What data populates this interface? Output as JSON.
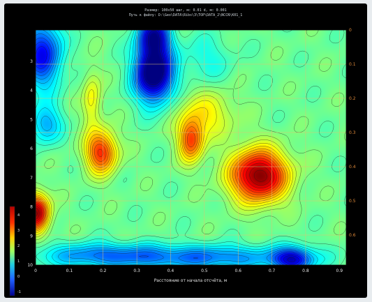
{
  "header": {
    "line1": "Размер: 100x50  шаг, м: 0.01  d, м: 0.001",
    "line2": "Путь к файлу: D:\\Geo\\DATA\\Ribs\\3\\TOP\\DATA_2\\NCCN\\K01_1"
  },
  "chart_data": {
    "type": "heatmap",
    "title": "",
    "xlabel": "Расстояние от начала отсчёта, м",
    "ylabel": "",
    "x_ticks": [
      "0",
      "0.1",
      "0.2",
      "0.3",
      "0.4",
      "0.5",
      "0.6",
      "0.7",
      "0.8",
      "0.9"
    ],
    "y_ticks_left": [
      "3",
      "4",
      "5",
      "6",
      "7",
      "8",
      "9",
      "10"
    ],
    "y_ticks_right": [
      "0",
      "0.1",
      "0.2",
      "0.3",
      "0.4",
      "0.5",
      "0.6"
    ],
    "xlim": [
      0,
      0.92
    ],
    "colorbar": {
      "ticks": [
        "4",
        "3",
        "2",
        "1",
        "0",
        "-1"
      ],
      "colormap": "jet"
    },
    "contours": true,
    "grid": true
  }
}
